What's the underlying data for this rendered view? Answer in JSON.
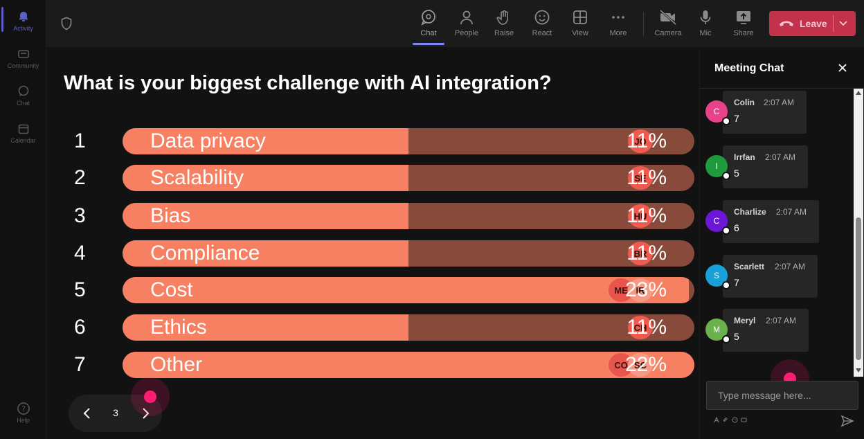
{
  "rail": {
    "items": [
      {
        "label": "Activity",
        "icon": "bell-icon",
        "active": true
      },
      {
        "label": "Community",
        "icon": "community-icon",
        "active": false
      },
      {
        "label": "Chat",
        "icon": "chat-icon",
        "active": false
      },
      {
        "label": "Calendar",
        "icon": "calendar-icon",
        "active": false
      }
    ],
    "help": {
      "label": "Help",
      "icon": "help-icon"
    }
  },
  "toolbar": {
    "buttons": [
      {
        "label": "Chat",
        "icon": "chat-icon"
      },
      {
        "label": "People",
        "icon": "people-icon"
      },
      {
        "label": "Raise",
        "icon": "raise-hand-icon"
      },
      {
        "label": "React",
        "icon": "react-icon"
      },
      {
        "label": "View",
        "icon": "view-icon"
      },
      {
        "label": "More",
        "icon": "more-icon"
      },
      {
        "label": "Camera",
        "icon": "camera-off-icon"
      },
      {
        "label": "Mic",
        "icon": "mic-icon"
      },
      {
        "label": "Share",
        "icon": "share-icon"
      }
    ],
    "leave_label": "Leave",
    "leave_color": "#c4314b"
  },
  "poll": {
    "question": "What is your biggest challenge with AI integration?",
    "options": [
      {
        "number": "1",
        "label": "Data privacy",
        "percent": "11%",
        "fill_fraction": 0.5,
        "voters": [
          "JO"
        ]
      },
      {
        "number": "2",
        "label": "Scalability",
        "percent": "11%",
        "fill_fraction": 0.5,
        "voters": [
          "SE"
        ]
      },
      {
        "number": "3",
        "label": "Bias",
        "percent": "11%",
        "fill_fraction": 0.5,
        "voters": [
          "HU"
        ]
      },
      {
        "number": "4",
        "label": "Compliance",
        "percent": "11%",
        "fill_fraction": 0.5,
        "voters": [
          "BR"
        ]
      },
      {
        "number": "5",
        "label": "Cost",
        "percent": "23%",
        "fill_fraction": 0.99,
        "voters": [
          "ME",
          "IR"
        ]
      },
      {
        "number": "6",
        "label": "Ethics",
        "percent": "11%",
        "fill_fraction": 0.5,
        "voters": [
          "CH"
        ]
      },
      {
        "number": "7",
        "label": "Other",
        "percent": "22%",
        "fill_fraction": 1.0,
        "voters": [
          "CO",
          "SC"
        ]
      }
    ],
    "bar_fill_color": "#f77f62",
    "bar_track_color": "#874a3b"
  },
  "pager": {
    "page": "3"
  },
  "chat": {
    "title": "Meeting Chat",
    "messages": [
      {
        "initial": "C",
        "name": "Colin",
        "time": "2:07 AM",
        "text": "7",
        "color": "#e8428a"
      },
      {
        "initial": "I",
        "name": "Irrfan",
        "time": "2:07 AM",
        "text": "5",
        "color": "#1f9a3c"
      },
      {
        "initial": "C",
        "name": "Charlize",
        "time": "2:07 AM",
        "text": "6",
        "color": "#6d17d6"
      },
      {
        "initial": "S",
        "name": "Scarlett",
        "time": "2:07 AM",
        "text": "7",
        "color": "#1aa0d8"
      },
      {
        "initial": "M",
        "name": "Meryl",
        "time": "2:07 AM",
        "text": "5",
        "color": "#6ab04c"
      }
    ],
    "compose_placeholder": "Type message here..."
  }
}
